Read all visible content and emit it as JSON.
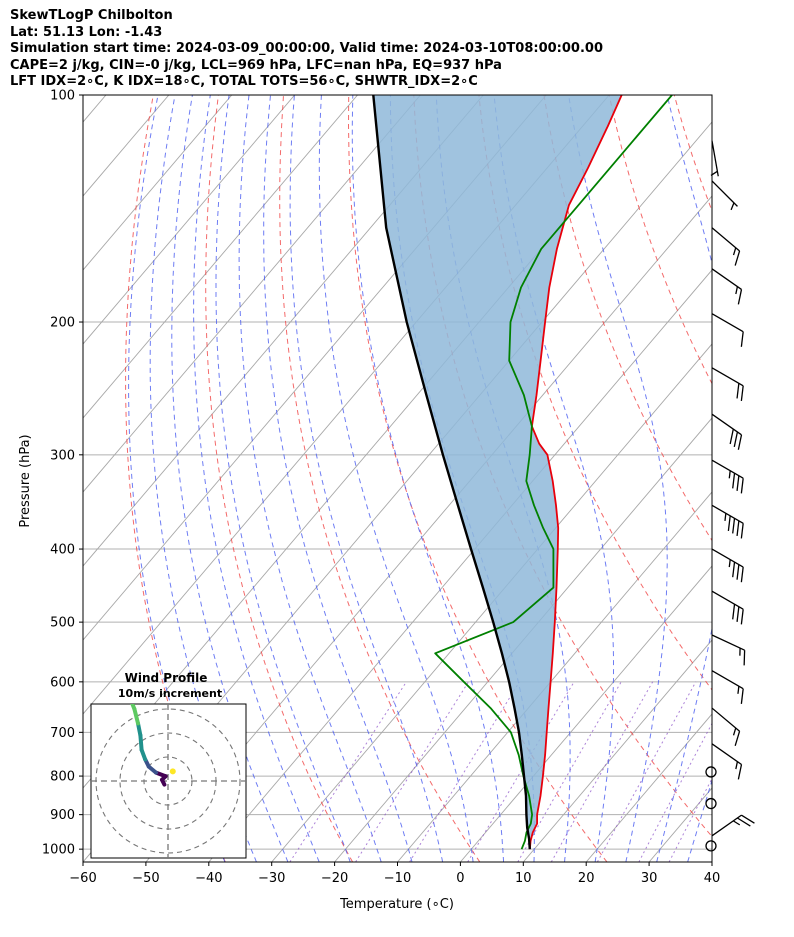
{
  "header": {
    "title": "SkewTLogP Chilbolton",
    "location": "Lat: 51.13   Lon: -1.43",
    "times": "Simulation start time: 2024-03-09_00:00:00, Valid time: 2024-03-10T08:00:00.00",
    "parcel": "CAPE=2 j/kg, CIN=-0 j/kg, LCL=969 hPa, LFC=nan hPa, EQ=937 hPa",
    "indices": "LFT IDX=2∘C, K IDX=18∘C, TOTAL TOTS=56∘C, SHWTR_IDX=2∘C"
  },
  "chart_data": [
    {
      "type": "line",
      "name": "skew-t",
      "xlabel": "Temperature (∘C)",
      "ylabel": "Pressure (hPa)",
      "xlim": [
        -60,
        40
      ],
      "ylim": [
        1040,
        100
      ],
      "y_scale": "log",
      "skew": "45deg",
      "x_ticks": [
        "−60",
        "−50",
        "−40",
        "−30",
        "−20",
        "−10",
        "0",
        "10",
        "20",
        "30",
        "40"
      ],
      "y_ticks": [
        "100",
        "200",
        "300",
        "400",
        "500",
        "600",
        "700",
        "800",
        "900",
        "1000"
      ],
      "grid": true,
      "series": [
        {
          "role": "temperature",
          "color": "#e8000b",
          "points": [
            [
              1000,
              9.3
            ],
            [
              975,
              8.3
            ],
            [
              950,
              7.5
            ],
            [
              925,
              7.0
            ],
            [
              900,
              5.8
            ],
            [
              850,
              3.8
            ],
            [
              800,
              1.5
            ],
            [
              750,
              -1.0
            ],
            [
              700,
              -3.8
            ],
            [
              650,
              -6.8
            ],
            [
              600,
              -10.0
            ],
            [
              550,
              -13.5
            ],
            [
              500,
              -17.4
            ],
            [
              450,
              -21.8
            ],
            [
              400,
              -26.8
            ],
            [
              375,
              -29.6
            ],
            [
              350,
              -33.0
            ],
            [
              325,
              -36.8
            ],
            [
              300,
              -41.2
            ],
            [
              290,
              -44.0
            ],
            [
              275,
              -47.5
            ],
            [
              250,
              -51.0
            ],
            [
              225,
              -55.0
            ],
            [
              200,
              -59.5
            ],
            [
              180,
              -63.5
            ],
            [
              160,
              -67.5
            ],
            [
              140,
              -71.5
            ],
            [
              125,
              -73.5
            ],
            [
              110,
              -76.0
            ],
            [
              100,
              -78.0
            ]
          ]
        },
        {
          "role": "dewpoint",
          "color": "#008000",
          "points": [
            [
              1000,
              8.0
            ],
            [
              975,
              7.4
            ],
            [
              950,
              6.5
            ],
            [
              925,
              6.0
            ],
            [
              900,
              5.0
            ],
            [
              850,
              2.0
            ],
            [
              800,
              -1.6
            ],
            [
              750,
              -5.2
            ],
            [
              700,
              -9.5
            ],
            [
              650,
              -16.0
            ],
            [
              600,
              -23.8
            ],
            [
              550,
              -32.2
            ],
            [
              500,
              -24.0
            ],
            [
              450,
              -22.3
            ],
            [
              400,
              -27.5
            ],
            [
              375,
              -32.0
            ],
            [
              350,
              -36.5
            ],
            [
              325,
              -41.0
            ],
            [
              300,
              -44.0
            ],
            [
              275,
              -47.5
            ],
            [
              250,
              -53.0
            ],
            [
              225,
              -60.0
            ],
            [
              200,
              -65.0
            ],
            [
              180,
              -68.0
            ],
            [
              160,
              -70.0
            ],
            [
              140,
              -70.0
            ],
            [
              120,
              -70.0
            ],
            [
              100,
              -70.0
            ]
          ]
        },
        {
          "role": "parcel",
          "color": "#000000",
          "points": [
            [
              1000,
              9.3
            ],
            [
              969,
              7.8
            ],
            [
              937,
              6.0
            ],
            [
              900,
              4.1
            ],
            [
              850,
              1.5
            ],
            [
              800,
              -1.5
            ],
            [
              750,
              -4.7
            ],
            [
              700,
              -8.2
            ],
            [
              650,
              -12.2
            ],
            [
              600,
              -16.6
            ],
            [
              550,
              -21.6
            ],
            [
              500,
              -27.2
            ],
            [
              450,
              -33.5
            ],
            [
              400,
              -40.6
            ],
            [
              350,
              -48.6
            ],
            [
              300,
              -57.8
            ],
            [
              250,
              -68.5
            ],
            [
              200,
              -81.5
            ],
            [
              150,
              -97.5
            ],
            [
              100,
              -117.5
            ]
          ]
        }
      ]
    },
    {
      "type": "scatter",
      "name": "wind-profile",
      "title": "Wind Profile",
      "subtitle": "10m/s increment",
      "ring_increment_ms": 10,
      "points": [
        [
          -1.5,
          -1.5
        ],
        [
          -2.5,
          0.5
        ],
        [
          -1.0,
          2.0
        ],
        [
          -5.0,
          3.5
        ],
        [
          -8.0,
          6.0
        ],
        [
          -9.5,
          9.0
        ],
        [
          -11.0,
          13.0
        ],
        [
          -11.5,
          19.0
        ],
        [
          -12.5,
          24.0
        ],
        [
          -14.0,
          30.0
        ],
        [
          -16.0,
          35.0
        ],
        [
          -18.0,
          39.0
        ],
        [
          -20.0,
          43.0
        ]
      ],
      "colormap": [
        "#440154",
        "#3b528b",
        "#21918c",
        "#5ec962",
        "#fde725"
      ]
    }
  ],
  "wind_barbs": [
    {
      "p": 990,
      "speed_kt": 0
    },
    {
      "p": 960,
      "speed_kt": 25,
      "dir": 235
    },
    {
      "p": 870,
      "speed_kt": 0
    },
    {
      "p": 790,
      "speed_kt": 0
    },
    {
      "p": 725,
      "speed_kt": 15,
      "dir": 305
    },
    {
      "p": 650,
      "speed_kt": 15,
      "dir": 310
    },
    {
      "p": 580,
      "speed_kt": 15,
      "dir": 300
    },
    {
      "p": 520,
      "speed_kt": 15,
      "dir": 295
    },
    {
      "p": 455,
      "speed_kt": 30,
      "dir": 300
    },
    {
      "p": 400,
      "speed_kt": 35,
      "dir": 300
    },
    {
      "p": 350,
      "speed_kt": 45,
      "dir": 300
    },
    {
      "p": 305,
      "speed_kt": 35,
      "dir": 300
    },
    {
      "p": 265,
      "speed_kt": 30,
      "dir": 305
    },
    {
      "p": 230,
      "speed_kt": 20,
      "dir": 300
    },
    {
      "p": 195,
      "speed_kt": 10,
      "dir": 300
    },
    {
      "p": 170,
      "speed_kt": 15,
      "dir": 305
    },
    {
      "p": 150,
      "speed_kt": 15,
      "dir": 310
    },
    {
      "p": 130,
      "speed_kt": 5,
      "dir": 315
    },
    {
      "p": 115,
      "speed_kt": 5,
      "dir": 350
    }
  ]
}
